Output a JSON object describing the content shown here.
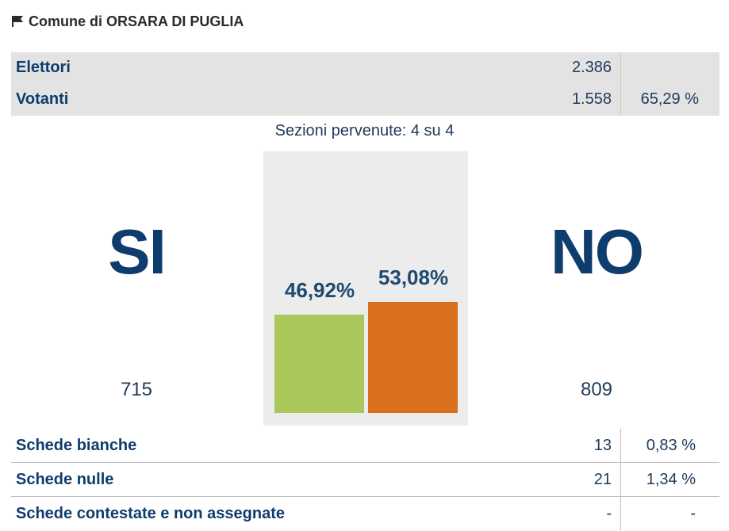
{
  "header": {
    "title": "Comune di ORSARA DI PUGLIA",
    "icon": "flag-icon"
  },
  "summary": {
    "elettori": {
      "label": "Elettori",
      "value": "2.386",
      "pct": ""
    },
    "votanti": {
      "label": "Votanti",
      "value": "1.558",
      "pct": "65,29 %"
    }
  },
  "sezioni": "Sezioni pervenute: 4 su 4",
  "results": {
    "si": {
      "label": "SI",
      "votes": "715",
      "pct_text": "46,92%",
      "pct": 46.92,
      "color": "#a9c75a"
    },
    "no": {
      "label": "NO",
      "votes": "809",
      "pct_text": "53,08%",
      "pct": 53.08,
      "color": "#d9701e"
    }
  },
  "schede": [
    {
      "label": "Schede bianche",
      "value": "13",
      "pct": "0,83 %"
    },
    {
      "label": "Schede nulle",
      "value": "21",
      "pct": "1,34 %"
    },
    {
      "label": "Schede contestate e non assegnate",
      "value": "-",
      "pct": "-"
    }
  ]
}
